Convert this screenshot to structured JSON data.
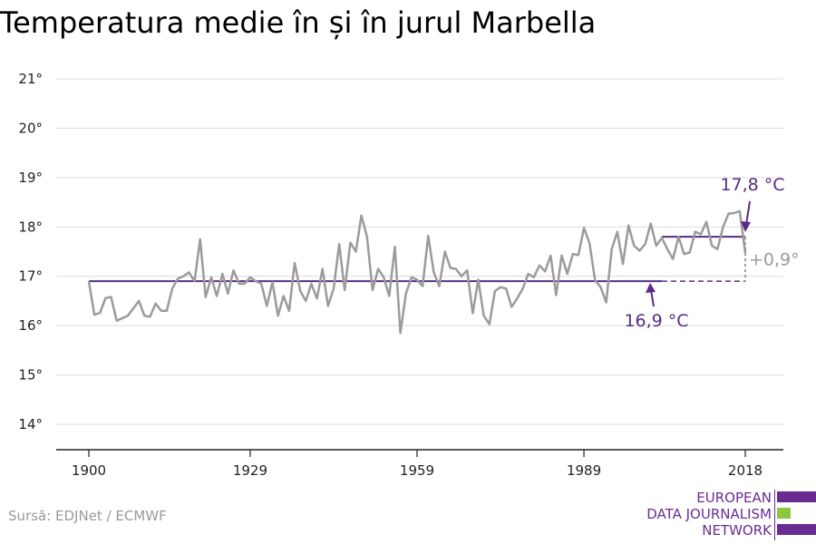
{
  "title": "Temperatura medie în și în jurul Marbella",
  "source": "Sursă: EDJNet / ECMWF",
  "logo": {
    "lines": [
      "EUROPEAN",
      "DATA JOURNALISM",
      "NETWORK"
    ],
    "colors": {
      "purple": "#6b2c91",
      "green": "#8dc63f"
    }
  },
  "colors": {
    "series": "#9b9b9b",
    "average": "#5b2a86",
    "grid": "#dcdcdc",
    "axis": "#222222",
    "diff": "#9b9b9b"
  },
  "chart_data": {
    "type": "line",
    "title": "Temperatura medie în și în jurul Marbella",
    "xlabel": "",
    "ylabel": "",
    "xlim": [
      1900,
      2018
    ],
    "ylim": [
      14,
      21
    ],
    "x_ticks": [
      1900,
      1929,
      1959,
      1989,
      2018
    ],
    "y_ticks": [
      14,
      15,
      16,
      17,
      18,
      19,
      20,
      21
    ],
    "y_tick_labels": [
      "14°",
      "15°",
      "16°",
      "17°",
      "18°",
      "19°",
      "20°",
      "21°"
    ],
    "grid": true,
    "series": [
      {
        "x": [
          1900,
          1901,
          1902,
          1903,
          1904,
          1905,
          1906,
          1907,
          1908,
          1909,
          1910,
          1911,
          1912,
          1913,
          1914,
          1915,
          1916,
          1917,
          1918,
          1919,
          1920,
          1921,
          1922,
          1923,
          1924,
          1925,
          1926,
          1927,
          1928,
          1929,
          1930,
          1931,
          1932,
          1933,
          1934,
          1935,
          1936,
          1937,
          1938,
          1939,
          1940,
          1941,
          1942,
          1943,
          1944,
          1945,
          1946,
          1947,
          1948,
          1949,
          1950,
          1951,
          1952,
          1953,
          1954,
          1955,
          1956,
          1957,
          1958,
          1959,
          1960,
          1961,
          1962,
          1963,
          1964,
          1965,
          1966,
          1967,
          1968,
          1969,
          1970,
          1971,
          1972,
          1973,
          1974,
          1975,
          1976,
          1977,
          1978,
          1979,
          1980,
          1981,
          1982,
          1983,
          1984,
          1985,
          1986,
          1987,
          1988,
          1989,
          1990,
          1991,
          1992,
          1993,
          1994,
          1995,
          1996,
          1997,
          1998,
          1999,
          2000,
          2001,
          2002,
          2003,
          2004,
          2005,
          2006,
          2007,
          2008,
          2009,
          2010,
          2011,
          2012,
          2013,
          2014,
          2015,
          2016,
          2017,
          2018
        ],
        "values": [
          16.9,
          16.22,
          16.26,
          16.56,
          16.58,
          16.1,
          16.15,
          16.2,
          16.35,
          16.5,
          16.2,
          16.18,
          16.45,
          16.3,
          16.3,
          16.75,
          16.95,
          17.0,
          17.08,
          16.9,
          17.75,
          16.58,
          16.98,
          16.6,
          17.05,
          16.65,
          17.12,
          16.85,
          16.85,
          16.98,
          16.9,
          16.85,
          16.4,
          16.88,
          16.2,
          16.6,
          16.3,
          17.27,
          16.7,
          16.5,
          16.85,
          16.55,
          17.15,
          16.4,
          16.75,
          17.65,
          16.72,
          17.68,
          17.5,
          18.23,
          17.8,
          16.72,
          17.15,
          16.98,
          16.6,
          17.6,
          15.85,
          16.65,
          16.98,
          16.93,
          16.8,
          17.82,
          17.08,
          16.8,
          17.5,
          17.17,
          17.15,
          17.0,
          17.12,
          16.25,
          16.93,
          16.2,
          16.03,
          16.7,
          16.78,
          16.75,
          16.38,
          16.55,
          16.75,
          17.05,
          16.98,
          17.22,
          17.1,
          17.42,
          16.62,
          17.42,
          17.05,
          17.45,
          17.43,
          17.98,
          17.67,
          16.92,
          16.78,
          16.47,
          17.55,
          17.9,
          17.25,
          18.03,
          17.62,
          17.52,
          17.65,
          18.07,
          17.62,
          17.78,
          17.55,
          17.35,
          17.8,
          17.45,
          17.48,
          17.9,
          17.85,
          18.1,
          17.62,
          17.55,
          18.0,
          18.27,
          18.28,
          18.32,
          17.47
        ]
      }
    ],
    "baseline": {
      "value": 16.9,
      "label": "16,9 °C",
      "x_start": 1900,
      "x_end": 2003,
      "dashed_to": 2018
    },
    "recent": {
      "value": 17.8,
      "label": "17,8 °C",
      "x_start": 2003,
      "x_end": 2018
    },
    "difference_label": "+0,9°"
  }
}
